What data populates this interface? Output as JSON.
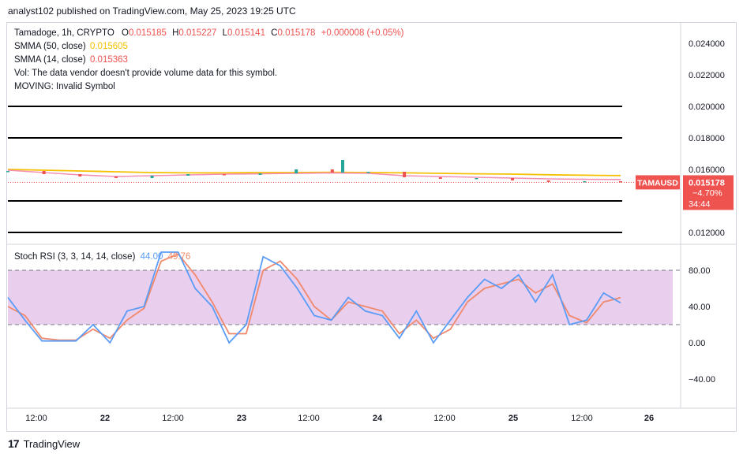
{
  "header": {
    "text": "analyst102 published on TradingView.com, May 25, 2023 19:25 UTC"
  },
  "legend": {
    "symbol": "Tamadoge, 1h, CRYPTO",
    "o_label": "O",
    "o": "0.015185",
    "h_label": "H",
    "h": "0.015227",
    "l_label": "L",
    "l": "0.015141",
    "c_label": "C",
    "c": "0.015178",
    "change": "+0.000008 (+0.05%)",
    "smma50_label": "SMMA (50, close)",
    "smma50": "0.015605",
    "smma14_label": "SMMA (14, close)",
    "smma14": "0.015363",
    "vol": "Vol: The data vendor doesn't provide volume data for this symbol.",
    "moving": "MOVING: Invalid Symbol"
  },
  "price_tags": {
    "symbol": "TAMAUSD",
    "price": "0.015178",
    "pct": "−4.70%",
    "timer": "34:44"
  },
  "stoch_legend": {
    "label": "Stoch RSI (3, 3, 14, 14, close)",
    "k": "44.00",
    "d": "49.76"
  },
  "footer": {
    "brand": "TradingView"
  },
  "colors": {
    "up": "#26a69a",
    "down": "#ef5350",
    "smma50": "#f5c000",
    "smma14": "#f48fb1",
    "k": "#5b9cf6",
    "d": "#f0896c",
    "band": "#e1bee7"
  },
  "chart_data": [
    {
      "type": "line",
      "title": "Tamadoge, 1h, CRYPTO",
      "y_ticks": [
        "0.024000",
        "0.022000",
        "0.020000",
        "0.018000",
        "0.016000",
        "0.012000"
      ],
      "ylim": [
        0.0112,
        0.0255
      ],
      "x_ticks": [
        "12:00",
        "22",
        "12:00",
        "23",
        "12:00",
        "24",
        "12:00",
        "25",
        "12:00",
        "26"
      ],
      "horizontal_lines": [
        0.02,
        0.018,
        0.014,
        0.012
      ],
      "series": [
        {
          "name": "SMMA (50, close)",
          "values": [
            0.016,
            0.01595,
            0.0159,
            0.01585,
            0.0158,
            0.01578,
            0.01578,
            0.0158,
            0.0158,
            0.01582,
            0.0158,
            0.01578,
            0.01575,
            0.01572,
            0.0157,
            0.01566,
            0.01563,
            0.01561
          ]
        },
        {
          "name": "SMMA (14, close)",
          "values": [
            0.01595,
            0.0158,
            0.01565,
            0.01555,
            0.0156,
            0.01565,
            0.0157,
            0.01572,
            0.01575,
            0.01578,
            0.01575,
            0.0156,
            0.01555,
            0.0155,
            0.01545,
            0.0154,
            0.01537,
            0.01536
          ]
        },
        {
          "name": "close",
          "values": [
            0.0159,
            0.0157,
            0.01555,
            0.01545,
            0.0156,
            0.0157,
            0.01565,
            0.01575,
            0.016,
            0.0158,
            0.01585,
            0.0155,
            0.0154,
            0.01545,
            0.0153,
            0.0152,
            0.01525,
            0.015178
          ]
        }
      ]
    },
    {
      "type": "line",
      "title": "Stoch RSI (3, 3, 14, 14, close)",
      "y_ticks": [
        "80.00",
        "40.00",
        "0.00",
        "−40.00"
      ],
      "ylim": [
        -55,
        110
      ],
      "bands": [
        20,
        80
      ],
      "series": [
        {
          "name": "K",
          "values": [
            50,
            25,
            2,
            2,
            2,
            20,
            0,
            35,
            40,
            100,
            100,
            60,
            40,
            0,
            20,
            95,
            85,
            60,
            30,
            25,
            50,
            35,
            30,
            5,
            35,
            0,
            25,
            50,
            70,
            60,
            75,
            45,
            75,
            20,
            25,
            55,
            44
          ]
        },
        {
          "name": "D",
          "values": [
            40,
            30,
            5,
            3,
            3,
            15,
            5,
            25,
            38,
            90,
            98,
            75,
            45,
            10,
            10,
            80,
            90,
            70,
            40,
            25,
            45,
            40,
            35,
            10,
            25,
            5,
            15,
            45,
            60,
            65,
            70,
            55,
            65,
            30,
            22,
            45,
            49.76
          ]
        }
      ]
    }
  ]
}
